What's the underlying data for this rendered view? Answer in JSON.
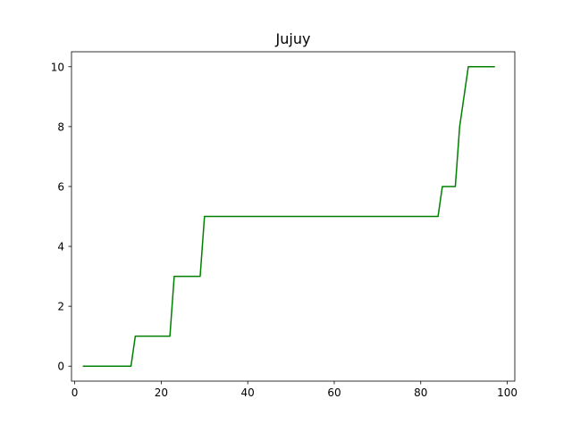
{
  "chart_data": {
    "type": "line",
    "title": "Jujuy",
    "xlabel": "",
    "ylabel": "",
    "xlim": [
      -0.75,
      101.75
    ],
    "ylim": [
      -0.5,
      10.5
    ],
    "x_ticks": [
      0,
      20,
      40,
      60,
      80,
      100
    ],
    "y_ticks": [
      0,
      2,
      4,
      6,
      8,
      10
    ],
    "x_tick_labels": [
      "0",
      "20",
      "40",
      "60",
      "80",
      "100"
    ],
    "y_tick_labels": [
      "0",
      "2",
      "4",
      "6",
      "8",
      "10"
    ],
    "grid": false,
    "legend": "none",
    "series": [
      {
        "color": "#008000",
        "x": [
          2,
          13,
          14,
          22,
          23,
          29,
          30,
          84,
          85,
          88,
          89,
          91,
          97
        ],
        "y": [
          0,
          0,
          1,
          1,
          3,
          3,
          5,
          5,
          6,
          6,
          8,
          10,
          10
        ]
      }
    ]
  }
}
